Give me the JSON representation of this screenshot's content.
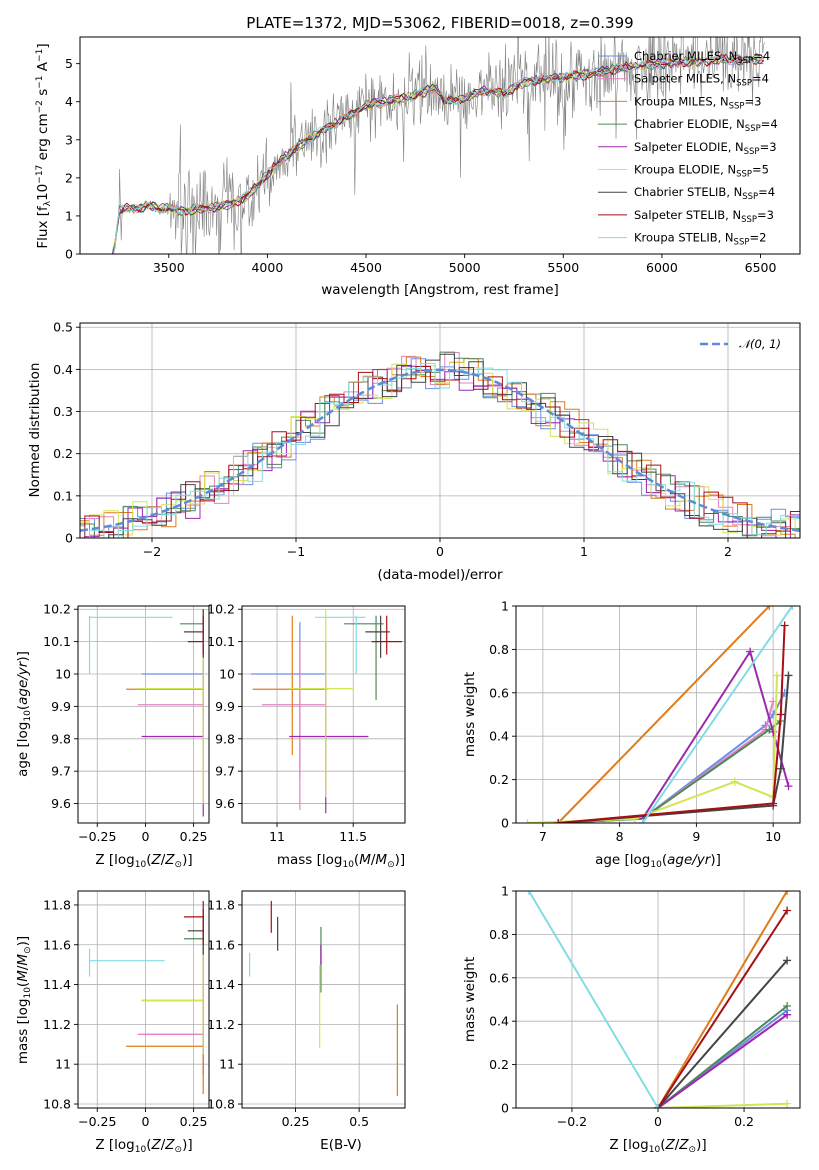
{
  "page_title": "PLATE=1372, MJD=53062, FIBERID=0018, z=0.399",
  "models": [
    {
      "name": "Chabrier MILES",
      "nssp": "4",
      "color": "#6b8ee8"
    },
    {
      "name": "Salpeter MILES",
      "nssp": "4",
      "color": "#e482c4"
    },
    {
      "name": "Kroupa MILES",
      "nssp": "3",
      "color": "#e07b1a"
    },
    {
      "name": "Chabrier ELODIE",
      "nssp": "4",
      "color": "#4e8a57"
    },
    {
      "name": "Salpeter ELODIE",
      "nssp": "3",
      "color": "#9b2aae"
    },
    {
      "name": "Kroupa ELODIE",
      "nssp": "5",
      "color": "#d5e454"
    },
    {
      "name": "Chabrier STELIB",
      "nssp": "4",
      "color": "#444444"
    },
    {
      "name": "Salpeter STELIB",
      "nssp": "3",
      "color": "#a50f15"
    },
    {
      "name": "Kroupa STELIB",
      "nssp": "2",
      "color": "#82dce5"
    }
  ],
  "nssp_prefix": "N",
  "nssp_sub": "SSP",
  "chart_data": [
    {
      "id": "spectrum",
      "type": "line",
      "xlabel": "wavelength [Angstrom, rest frame]",
      "ylabel": "Flux [f_λ 10^-17 erg cm^-2 s^-1 A^-1]",
      "xlim": [
        3050,
        6700
      ],
      "ylim": [
        0,
        5.7
      ],
      "xticks": [
        3500,
        4000,
        4500,
        5000,
        5500,
        6000,
        6500
      ],
      "yticks": [
        0,
        1,
        2,
        3,
        4,
        5
      ],
      "legend": "upper right",
      "data_color": "#808080",
      "model_continuum": {
        "x": [
          3220,
          3250,
          3300,
          3350,
          3400,
          3450,
          3500,
          3550,
          3600,
          3650,
          3700,
          3750,
          3800,
          3850,
          3900,
          3950,
          4000,
          4100,
          4200,
          4300,
          4400,
          4500,
          4600,
          4700,
          4800,
          4850,
          4900,
          5000,
          5100,
          5200,
          5300,
          5400,
          5500,
          5600,
          5700,
          5800,
          5900,
          6000,
          6100,
          6200,
          6300,
          6400,
          6500,
          6520
        ],
        "y": [
          0,
          1.15,
          1.22,
          1.2,
          1.28,
          1.18,
          1.2,
          1.12,
          1.15,
          1.18,
          1.2,
          1.25,
          1.3,
          1.4,
          1.55,
          1.8,
          2.1,
          2.6,
          3.0,
          3.3,
          3.6,
          3.9,
          4.0,
          4.1,
          4.25,
          4.4,
          4.0,
          4.1,
          4.3,
          4.2,
          4.5,
          4.6,
          4.65,
          4.7,
          4.8,
          4.9,
          4.95,
          5.0,
          5.05,
          5.05,
          5.1,
          5.1,
          5.12,
          5.1
        ]
      }
    },
    {
      "id": "residuals",
      "type": "histogram",
      "xlabel": "(data-model)/error",
      "ylabel": "Normed distribution",
      "xlim": [
        -2.5,
        2.5
      ],
      "ylim": [
        0,
        0.51
      ],
      "xticks": [
        -2,
        -1,
        0,
        1,
        2
      ],
      "yticks": [
        0.0,
        0.1,
        0.2,
        0.3,
        0.4,
        0.5
      ],
      "grid": true,
      "legend": "upper right",
      "reference_label": "𝒩(0, 1)",
      "reference_color": "#5b8bd9"
    },
    {
      "id": "age-vs-Z",
      "type": "errorbar",
      "xlabel": "Z [log10(Z/Z⊙)]",
      "ylabel": "age [log10(age/yr)]",
      "xlim": [
        -0.35,
        0.33
      ],
      "ylim": [
        9.54,
        10.21
      ],
      "xticks": [
        -0.25,
        0.0,
        0.25
      ],
      "yticks": [
        9.6,
        9.7,
        9.8,
        9.9,
        10.0,
        10.1,
        10.2
      ],
      "grid": true,
      "points": [
        {
          "model": 0,
          "x": 0.3,
          "y": 10.0,
          "xl": -0.02,
          "xh": 0.3,
          "yl": 9.95,
          "yh": 10.05
        },
        {
          "model": 1,
          "x": 0.3,
          "y": 9.905,
          "xl": -0.04,
          "xh": 0.3,
          "yl": 9.86,
          "yh": 9.95
        },
        {
          "model": 2,
          "x": 0.3,
          "y": 9.953,
          "xl": -0.1,
          "xh": 0.3,
          "yl": 9.9,
          "yh": 10.0
        },
        {
          "model": 3,
          "x": 0.3,
          "y": 10.155,
          "xl": 0.18,
          "xh": 0.3,
          "yl": 10.1,
          "yh": 10.2
        },
        {
          "model": 4,
          "x": 0.3,
          "y": 9.807,
          "xl": -0.02,
          "xh": 0.3,
          "yl": 9.56,
          "yh": 10.05
        },
        {
          "model": 5,
          "x": 0.3,
          "y": 9.955,
          "xl": -0.04,
          "xh": 0.3,
          "yl": 9.6,
          "yh": 10.2
        },
        {
          "model": 6,
          "x": 0.3,
          "y": 10.13,
          "xl": 0.2,
          "xh": 0.3,
          "yl": 10.05,
          "yh": 10.2
        },
        {
          "model": 7,
          "x": 0.3,
          "y": 10.1,
          "xl": 0.22,
          "xh": 0.3,
          "yl": 10.06,
          "yh": 10.18
        },
        {
          "model": 8,
          "x": -0.29,
          "y": 10.175,
          "xl": -0.29,
          "xh": 0.14,
          "yl": 10.0,
          "yh": 10.18
        }
      ]
    },
    {
      "id": "age-vs-mass",
      "type": "errorbar",
      "xlabel": "mass [log10(M/M⊙)]",
      "ylabel": "",
      "xlim": [
        10.77,
        11.84
      ],
      "ylim": [
        9.54,
        10.21
      ],
      "xticks": [
        11.0,
        11.5
      ],
      "yticks": [
        9.6,
        9.7,
        9.8,
        9.9,
        10.0,
        10.1,
        10.2
      ],
      "grid": true,
      "points": [
        {
          "model": 0,
          "x": 11.15,
          "y": 10.0,
          "xl": 10.83,
          "xh": 11.32,
          "yl": 9.68,
          "yh": 10.16
        },
        {
          "model": 1,
          "x": 11.15,
          "y": 9.905,
          "xl": 10.9,
          "xh": 11.32,
          "yl": 9.58,
          "yh": 10.1
        },
        {
          "model": 2,
          "x": 11.1,
          "y": 9.953,
          "xl": 10.84,
          "xh": 11.33,
          "yl": 9.75,
          "yh": 10.18
        },
        {
          "model": 3,
          "x": 11.65,
          "y": 10.155,
          "xl": 11.44,
          "xh": 11.7,
          "yl": 9.92,
          "yh": 10.18
        },
        {
          "model": 4,
          "x": 11.32,
          "y": 9.807,
          "xl": 11.08,
          "xh": 11.6,
          "yl": 9.57,
          "yh": 10.1
        },
        {
          "model": 5,
          "x": 11.32,
          "y": 9.955,
          "xl": 11.08,
          "xh": 11.5,
          "yl": 9.62,
          "yh": 10.2
        },
        {
          "model": 6,
          "x": 11.68,
          "y": 10.13,
          "xl": 11.58,
          "xh": 11.74,
          "yl": 10.05,
          "yh": 10.18
        },
        {
          "model": 7,
          "x": 11.72,
          "y": 10.1,
          "xl": 11.62,
          "xh": 11.82,
          "yl": 10.06,
          "yh": 10.18
        },
        {
          "model": 8,
          "x": 11.52,
          "y": 10.175,
          "xl": 11.25,
          "xh": 11.58,
          "yl": 10.0,
          "yh": 10.18
        }
      ]
    },
    {
      "id": "mass-weight-vs-age",
      "type": "line",
      "xlabel": "age [log10(age/yr)]",
      "ylabel": "mass weight",
      "xlim": [
        6.65,
        10.35
      ],
      "ylim": [
        0,
        1.0
      ],
      "xticks": [
        7,
        8,
        9,
        10
      ],
      "yticks": [
        0.0,
        0.2,
        0.4,
        0.6,
        0.8,
        1.0
      ],
      "grid": true,
      "series": [
        {
          "model": 0,
          "x": [
            7.2,
            8.3,
            9.9,
            10.0,
            10.15
          ],
          "y": [
            0.0,
            0.02,
            0.45,
            0.5,
            0.6
          ]
        },
        {
          "model": 1,
          "x": [
            7.2,
            8.3,
            9.9,
            10.0
          ],
          "y": [
            0.0,
            0.02,
            0.43,
            0.56
          ]
        },
        {
          "model": 2,
          "x": [
            7.2,
            9.95
          ],
          "y": [
            0.0,
            1.0
          ]
        },
        {
          "model": 3,
          "x": [
            7.2,
            8.3,
            9.95,
            10.1
          ],
          "y": [
            0.0,
            0.02,
            0.43,
            0.47
          ]
        },
        {
          "model": 4,
          "x": [
            8.3,
            9.7,
            10.0,
            10.2
          ],
          "y": [
            0.02,
            0.79,
            0.42,
            0.17
          ]
        },
        {
          "model": 5,
          "x": [
            6.8,
            8.2,
            9.5,
            10.0,
            10.05
          ],
          "y": [
            0.0,
            0.02,
            0.19,
            0.12,
            0.68
          ]
        },
        {
          "model": 6,
          "x": [
            7.2,
            10.0,
            10.1,
            10.2
          ],
          "y": [
            0.0,
            0.08,
            0.25,
            0.68
          ]
        },
        {
          "model": 7,
          "x": [
            7.2,
            10.0,
            10.1,
            10.15
          ],
          "y": [
            0.0,
            0.09,
            0.5,
            0.91
          ]
        },
        {
          "model": 8,
          "x": [
            8.3,
            10.25
          ],
          "y": [
            0.0,
            1.0
          ]
        }
      ]
    },
    {
      "id": "mass-vs-Z",
      "type": "errorbar",
      "xlabel": "Z [log10(Z/Z⊙)]",
      "ylabel": "mass [log10(M/M⊙)]",
      "xlim": [
        -0.35,
        0.33
      ],
      "ylim": [
        10.78,
        11.87
      ],
      "xticks": [
        -0.25,
        0.0,
        0.25
      ],
      "yticks": [
        10.8,
        11.0,
        11.2,
        11.4,
        11.6,
        11.8
      ],
      "grid": true,
      "points": [
        {
          "model": 0,
          "x": 0.3,
          "y": 11.15,
          "xl": -0.02,
          "xh": 0.3,
          "yl": 10.95,
          "yh": 11.5
        },
        {
          "model": 1,
          "x": 0.3,
          "y": 11.15,
          "xl": -0.04,
          "xh": 0.3,
          "yl": 10.95,
          "yh": 11.5
        },
        {
          "model": 2,
          "x": 0.3,
          "y": 11.09,
          "xl": -0.1,
          "xh": 0.3,
          "yl": 10.85,
          "yh": 11.35
        },
        {
          "model": 3,
          "x": 0.3,
          "y": 11.63,
          "xl": 0.2,
          "xh": 0.3,
          "yl": 11.5,
          "yh": 11.75
        },
        {
          "model": 4,
          "x": 0.3,
          "y": 11.32,
          "xl": -0.02,
          "xh": 0.3,
          "yl": 11.05,
          "yh": 11.6
        },
        {
          "model": 5,
          "x": 0.3,
          "y": 11.32,
          "xl": -0.02,
          "xh": 0.3,
          "yl": 11.05,
          "yh": 11.6
        },
        {
          "model": 6,
          "x": 0.3,
          "y": 11.67,
          "xl": 0.22,
          "xh": 0.3,
          "yl": 11.55,
          "yh": 11.78
        },
        {
          "model": 7,
          "x": 0.3,
          "y": 11.74,
          "xl": 0.2,
          "xh": 0.3,
          "yl": 11.6,
          "yh": 11.82
        },
        {
          "model": 8,
          "x": -0.29,
          "y": 11.52,
          "xl": -0.29,
          "xh": 0.1,
          "yl": 11.44,
          "yh": 11.58
        }
      ]
    },
    {
      "id": "mass-vs-EBV",
      "type": "errorbar",
      "xlabel": "E(B-V)",
      "ylabel": "",
      "xlim": [
        0.04,
        0.68
      ],
      "ylim": [
        10.78,
        11.87
      ],
      "xticks": [
        0.25,
        0.5
      ],
      "yticks": [
        10.8,
        11.0,
        11.2,
        11.4,
        11.6,
        11.8
      ],
      "grid": true,
      "points": [
        {
          "model": 0,
          "x": 0.35,
          "y": 11.55,
          "xl": 0.35,
          "xh": 0.35,
          "yl": 11.5,
          "yh": 11.6
        },
        {
          "model": 1,
          "x": 0.35,
          "y": 11.55,
          "xl": 0.35,
          "xh": 0.35,
          "yl": 11.5,
          "yh": 11.6
        },
        {
          "model": 2,
          "x": 0.65,
          "y": 11.09,
          "xl": 0.65,
          "xh": 0.65,
          "yl": 10.84,
          "yh": 11.3
        },
        {
          "model": 3,
          "x": 0.35,
          "y": 11.52,
          "xl": 0.35,
          "xh": 0.35,
          "yl": 11.36,
          "yh": 11.69
        },
        {
          "model": 4,
          "x": 0.35,
          "y": 11.55,
          "xl": 0.35,
          "xh": 0.35,
          "yl": 11.5,
          "yh": 11.6
        },
        {
          "model": 5,
          "x": 0.345,
          "y": 11.3,
          "xl": 0.345,
          "xh": 0.345,
          "yl": 11.08,
          "yh": 11.5
        },
        {
          "model": 6,
          "x": 0.18,
          "y": 11.67,
          "xl": 0.18,
          "xh": 0.18,
          "yl": 11.57,
          "yh": 11.74
        },
        {
          "model": 7,
          "x": 0.155,
          "y": 11.74,
          "xl": 0.155,
          "xh": 0.155,
          "yl": 11.66,
          "yh": 11.82
        },
        {
          "model": 8,
          "x": 0.07,
          "y": 11.5,
          "xl": 0.07,
          "xh": 0.07,
          "yl": 11.44,
          "yh": 11.56
        }
      ]
    },
    {
      "id": "mass-weight-vs-Z",
      "type": "line",
      "xlabel": "Z [log10(Z/Z⊙)]",
      "ylabel": "mass weight",
      "xlim": [
        -0.33,
        0.33
      ],
      "ylim": [
        0,
        1.0
      ],
      "xticks": [
        -0.2,
        0.0,
        0.2
      ],
      "yticks": [
        0.0,
        0.2,
        0.4,
        0.6,
        0.8,
        1.0
      ],
      "grid": true,
      "series": [
        {
          "model": 0,
          "x": [
            0.0,
            0.3
          ],
          "y": [
            0.0,
            0.45
          ]
        },
        {
          "model": 1,
          "x": [
            0.0,
            0.3
          ],
          "y": [
            0.0,
            0.43
          ]
        },
        {
          "model": 2,
          "x": [
            0.0,
            0.3
          ],
          "y": [
            0.0,
            1.0
          ]
        },
        {
          "model": 3,
          "x": [
            0.0,
            0.3
          ],
          "y": [
            0.0,
            0.47
          ]
        },
        {
          "model": 4,
          "x": [
            0.0,
            0.3
          ],
          "y": [
            0.0,
            0.43
          ]
        },
        {
          "model": 5,
          "x": [
            0.0,
            0.3
          ],
          "y": [
            0.0,
            0.02
          ]
        },
        {
          "model": 6,
          "x": [
            0.0,
            0.3
          ],
          "y": [
            0.0,
            0.68
          ]
        },
        {
          "model": 7,
          "x": [
            0.0,
            0.3
          ],
          "y": [
            0.0,
            0.91
          ]
        },
        {
          "model": 8,
          "x": [
            -0.3,
            0.0
          ],
          "y": [
            1.0,
            0.0
          ]
        }
      ]
    }
  ]
}
